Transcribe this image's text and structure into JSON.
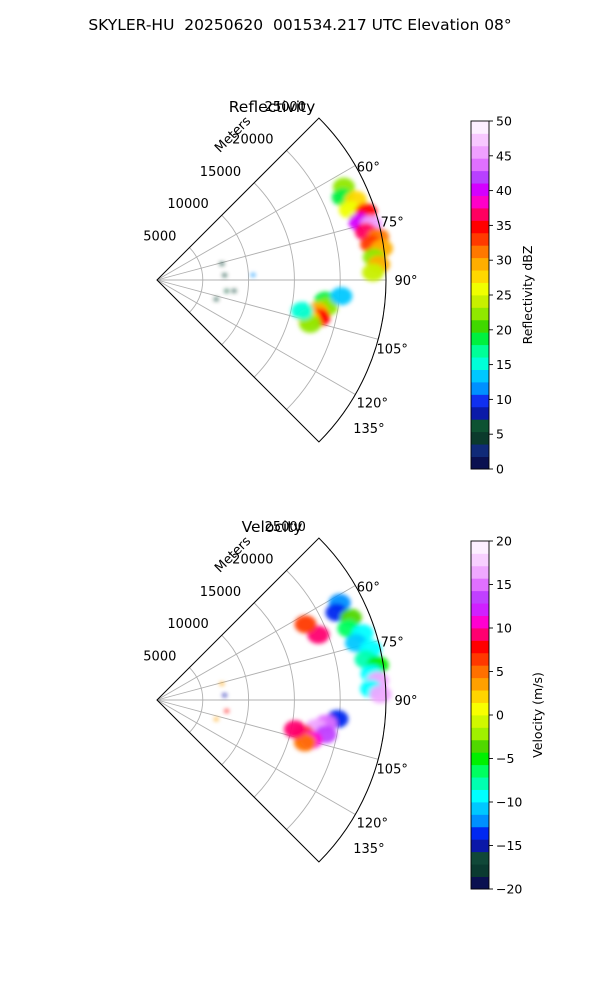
{
  "title": "SKYLER-HU  20250620  001534.217 UTC Elevation 08°",
  "chart_data": [
    {
      "type": "heatmap",
      "projection": "polar-sector",
      "title": "Reflectivity",
      "radial_axis_label": "Meters",
      "radial_ticks": [
        5000,
        10000,
        15000,
        20000,
        25000
      ],
      "radial_tick_labels": [
        "5000",
        "10000",
        "15000",
        "20000",
        "25000"
      ],
      "radial_range": [
        0,
        25000
      ],
      "azimuth_range_deg": [
        45,
        135
      ],
      "azimuth_ticks": [
        60,
        75,
        90,
        105,
        120,
        135
      ],
      "azimuth_tick_labels": [
        "60°",
        "75°",
        "90°",
        "105°",
        "120°",
        "135°"
      ],
      "grid": true,
      "colorbar": {
        "label": "Reflectivity dBZ",
        "range": [
          0,
          50
        ],
        "ticks": [
          0,
          5,
          10,
          15,
          20,
          25,
          30,
          35,
          40,
          45,
          50
        ],
        "tick_labels": [
          "0",
          "5",
          "10",
          "15",
          "20",
          "25",
          "30",
          "35",
          "40",
          "45",
          "50"
        ],
        "colors": [
          "#0a1050",
          "#102a78",
          "#0b3a2c",
          "#0e5232",
          "#0a1aa8",
          "#1030f0",
          "#0090ff",
          "#00c8ff",
          "#00ffd8",
          "#00ff98",
          "#00f040",
          "#40d800",
          "#90e800",
          "#c8f000",
          "#f0ff00",
          "#ffd800",
          "#ffae00",
          "#ff7800",
          "#ff3a00",
          "#ff0000",
          "#ff0060",
          "#ff00c8",
          "#d400ff",
          "#b840ff",
          "#e070ff",
          "#f0a0ff",
          "#f8c8ff",
          "#fdf0ff"
        ]
      },
      "cells": [
        {
          "az": 63.5,
          "r": 22800,
          "v": 22
        },
        {
          "az": 66,
          "r": 22200,
          "v": 18
        },
        {
          "az": 68,
          "r": 23400,
          "v": 27
        },
        {
          "az": 70,
          "r": 22400,
          "v": 26
        },
        {
          "az": 72,
          "r": 24000,
          "v": 34
        },
        {
          "az": 74,
          "r": 23000,
          "v": 40
        },
        {
          "az": 75.5,
          "r": 24200,
          "v": 45
        },
        {
          "az": 77,
          "r": 23400,
          "v": 37
        },
        {
          "az": 79,
          "r": 24600,
          "v": 31
        },
        {
          "az": 80.5,
          "r": 23700,
          "v": 33
        },
        {
          "az": 82,
          "r": 24800,
          "v": 30
        },
        {
          "az": 84,
          "r": 23800,
          "v": 22
        },
        {
          "az": 86,
          "r": 24300,
          "v": 29
        },
        {
          "az": 88,
          "r": 23600,
          "v": 24
        },
        {
          "az": 97,
          "r": 18500,
          "v": 18
        },
        {
          "az": 99,
          "r": 18800,
          "v": 22
        },
        {
          "az": 101,
          "r": 17800,
          "v": 30
        },
        {
          "az": 103,
          "r": 18200,
          "v": 34
        },
        {
          "az": 104,
          "r": 17000,
          "v": 28
        },
        {
          "az": 106,
          "r": 17400,
          "v": 23
        },
        {
          "az": 102,
          "r": 16200,
          "v": 16
        },
        {
          "az": 95,
          "r": 20200,
          "v": 14
        },
        {
          "az": 76,
          "r": 7300,
          "v": 5
        },
        {
          "az": 86,
          "r": 7400,
          "v": 4
        },
        {
          "az": 99,
          "r": 7700,
          "v": 6
        },
        {
          "az": 108,
          "r": 6800,
          "v": 5
        },
        {
          "az": 98,
          "r": 8500,
          "v": 4
        },
        {
          "az": 87,
          "r": 10500,
          "v": 12
        }
      ]
    },
    {
      "type": "heatmap",
      "projection": "polar-sector",
      "title": "Velocity",
      "radial_axis_label": "Meters",
      "radial_ticks": [
        5000,
        10000,
        15000,
        20000,
        25000
      ],
      "radial_tick_labels": [
        "5000",
        "10000",
        "15000",
        "20000",
        "25000"
      ],
      "radial_range": [
        0,
        25000
      ],
      "azimuth_range_deg": [
        45,
        135
      ],
      "azimuth_ticks": [
        60,
        75,
        90,
        105,
        120,
        135
      ],
      "azimuth_tick_labels": [
        "60°",
        "75°",
        "90°",
        "105°",
        "120°",
        "135°"
      ],
      "grid": true,
      "colorbar": {
        "label": "Velocity (m/s)",
        "range": [
          -20,
          20
        ],
        "ticks": [
          -20,
          -15,
          -10,
          -5,
          0,
          5,
          10,
          15,
          20
        ],
        "tick_labels": [
          "−20",
          "−15",
          "−10",
          "−5",
          "0",
          "5",
          "10",
          "15",
          "20"
        ],
        "colors": [
          "#0a1050",
          "#0a3a30",
          "#104838",
          "#0a18a8",
          "#0028f0",
          "#0090ff",
          "#00c8ff",
          "#00ffff",
          "#00ffb0",
          "#00ff60",
          "#00f000",
          "#50d800",
          "#a0f000",
          "#d0f800",
          "#f8ff00",
          "#ffd400",
          "#ffa000",
          "#ff7000",
          "#ff3800",
          "#ff0000",
          "#ff0070",
          "#ff00d0",
          "#d020ff",
          "#c040ff",
          "#e070ff",
          "#f0a8ff",
          "#f8d0ff",
          "#fdf0ff"
        ]
      },
      "cells": [
        {
          "az": 62,
          "r": 22600,
          "v": -12
        },
        {
          "az": 64,
          "r": 21800,
          "v": -13
        },
        {
          "az": 67,
          "r": 23000,
          "v": -4
        },
        {
          "az": 69.5,
          "r": 22300,
          "v": -6
        },
        {
          "az": 72,
          "r": 23600,
          "v": -10
        },
        {
          "az": 74,
          "r": 22600,
          "v": -11
        },
        {
          "az": 76.5,
          "r": 24000,
          "v": -9
        },
        {
          "az": 79,
          "r": 23200,
          "v": -8
        },
        {
          "az": 81,
          "r": 24400,
          "v": -5
        },
        {
          "az": 83,
          "r": 23600,
          "v": -9
        },
        {
          "az": 85,
          "r": 24200,
          "v": 16
        },
        {
          "az": 87,
          "r": 23400,
          "v": -10
        },
        {
          "az": 88.5,
          "r": 24400,
          "v": 17
        },
        {
          "az": 96,
          "r": 19800,
          "v": -14
        },
        {
          "az": 98,
          "r": 18600,
          "v": 15
        },
        {
          "az": 100,
          "r": 17600,
          "v": 16
        },
        {
          "az": 101.5,
          "r": 18800,
          "v": 14
        },
        {
          "az": 103,
          "r": 16400,
          "v": 7
        },
        {
          "az": 104.5,
          "r": 17400,
          "v": 11
        },
        {
          "az": 106,
          "r": 16800,
          "v": 5
        },
        {
          "az": 102,
          "r": 15400,
          "v": 9
        },
        {
          "az": 68,
          "r": 19000,
          "v": 9
        },
        {
          "az": 63,
          "r": 18200,
          "v": 6
        },
        {
          "az": 76,
          "r": 7300,
          "v": 4
        },
        {
          "az": 86,
          "r": 7400,
          "v": -15
        },
        {
          "az": 99,
          "r": 7700,
          "v": 8
        },
        {
          "az": 108,
          "r": 6800,
          "v": 3
        }
      ]
    }
  ]
}
